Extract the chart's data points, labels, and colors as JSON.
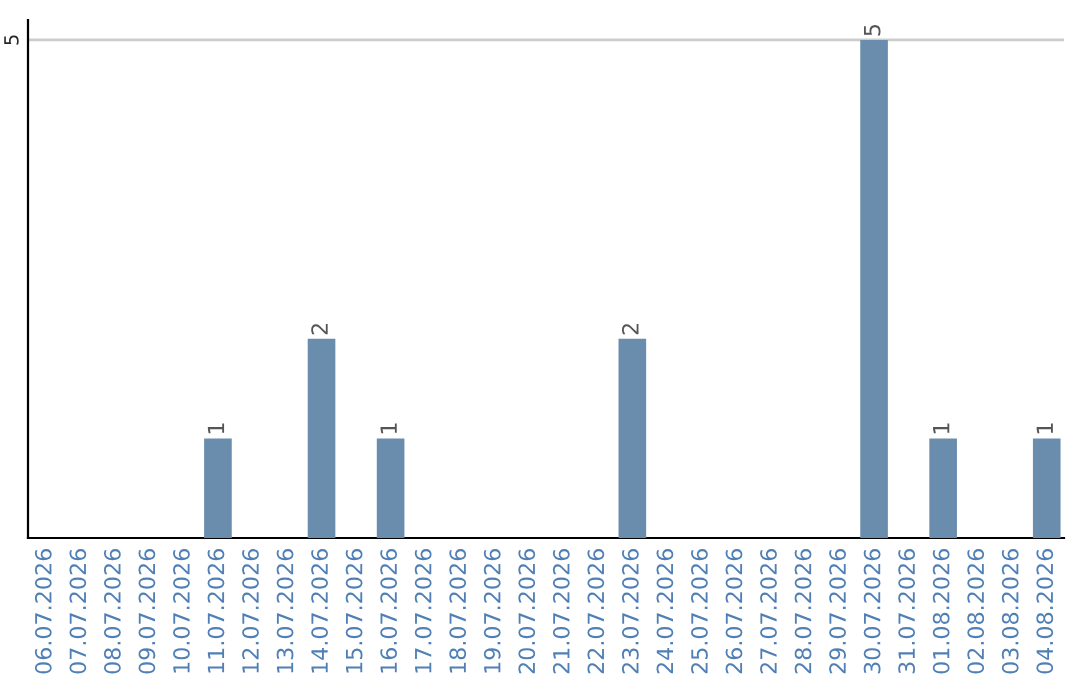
{
  "chart_data": {
    "type": "bar",
    "categories": [
      "06.07.2026",
      "07.07.2026",
      "08.07.2026",
      "09.07.2026",
      "10.07.2026",
      "11.07.2026",
      "12.07.2026",
      "13.07.2026",
      "14.07.2026",
      "15.07.2026",
      "16.07.2026",
      "17.07.2026",
      "18.07.2026",
      "19.07.2026",
      "20.07.2026",
      "21.07.2026",
      "22.07.2026",
      "23.07.2026",
      "24.07.2026",
      "25.07.2026",
      "26.07.2026",
      "27.07.2026",
      "28.07.2026",
      "29.07.2026",
      "30.07.2026",
      "31.07.2026",
      "01.08.2026",
      "02.08.2026",
      "03.08.2026",
      "04.08.2026"
    ],
    "values": [
      0,
      0,
      0,
      0,
      0,
      1,
      0,
      0,
      2,
      0,
      1,
      0,
      0,
      0,
      0,
      0,
      0,
      2,
      0,
      0,
      0,
      0,
      0,
      0,
      5,
      0,
      1,
      0,
      0,
      1
    ],
    "value_labels": [
      null,
      null,
      null,
      null,
      null,
      "1",
      null,
      null,
      "2",
      null,
      "1",
      null,
      null,
      null,
      null,
      null,
      null,
      "2",
      null,
      null,
      null,
      null,
      null,
      null,
      "5",
      null,
      "1",
      null,
      null,
      "1"
    ],
    "color": "#6a8cad",
    "ylim": [
      0,
      5.2
    ],
    "yticks": [
      5
    ],
    "grid": "y",
    "legend": false
  }
}
